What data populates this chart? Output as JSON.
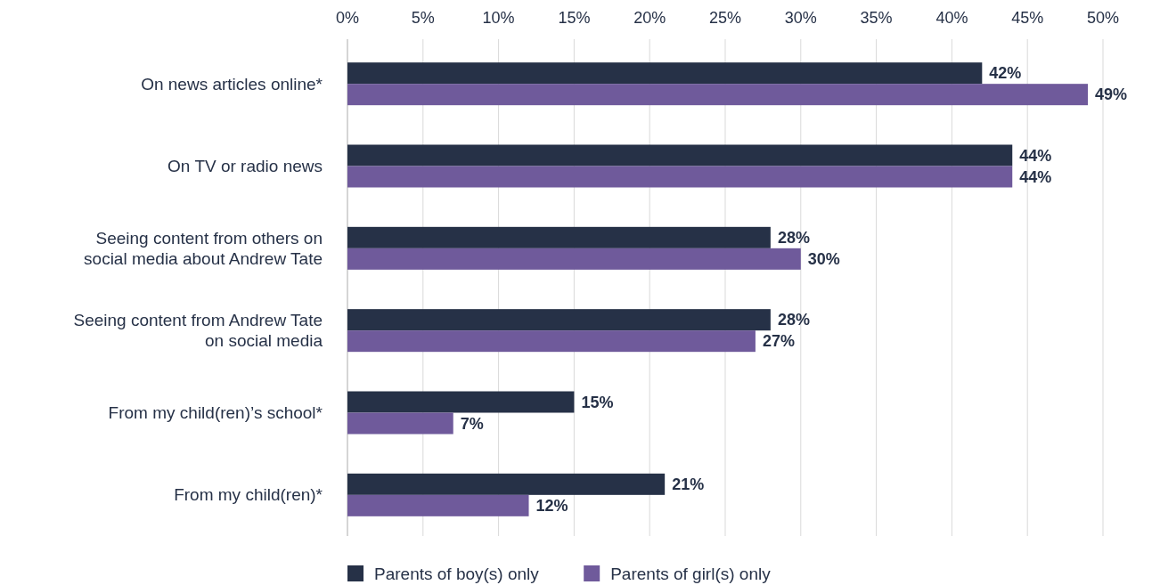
{
  "chart_data": {
    "type": "bar",
    "orientation": "horizontal",
    "categories": [
      "On news articles online*",
      "On TV or radio news",
      "Seeing content from others on social media about Andrew Tate",
      "Seeing content from Andrew Tate on social media",
      "From my child(ren)’s school*",
      "From my child(ren)*"
    ],
    "series": [
      {
        "name": "Parents of boy(s) only",
        "color": "#263147",
        "values": [
          42,
          44,
          28,
          28,
          15,
          21
        ],
        "value_labels": [
          "42%",
          "44%",
          "28%",
          "28%",
          "15%",
          "21%"
        ]
      },
      {
        "name": "Parents of girl(s) only",
        "color": "#6f5a9b",
        "values": [
          49,
          44,
          30,
          27,
          7,
          12
        ],
        "value_labels": [
          "49%",
          "44%",
          "30%",
          "27%",
          "7%",
          "12%"
        ]
      }
    ],
    "xlim": [
      0,
      50
    ],
    "xticks": [
      {
        "value": 0,
        "label": "0%"
      },
      {
        "value": 5,
        "label": "5%"
      },
      {
        "value": 10,
        "label": "10%"
      },
      {
        "value": 15,
        "label": "15%"
      },
      {
        "value": 20,
        "label": "20%"
      },
      {
        "value": 25,
        "label": "25%"
      },
      {
        "value": 30,
        "label": "30%"
      },
      {
        "value": 35,
        "label": "35%"
      },
      {
        "value": 40,
        "label": "40%"
      },
      {
        "value": 45,
        "label": "45%"
      },
      {
        "value": 50,
        "label": "50%"
      }
    ],
    "grid": "x",
    "legend": "bottom"
  }
}
